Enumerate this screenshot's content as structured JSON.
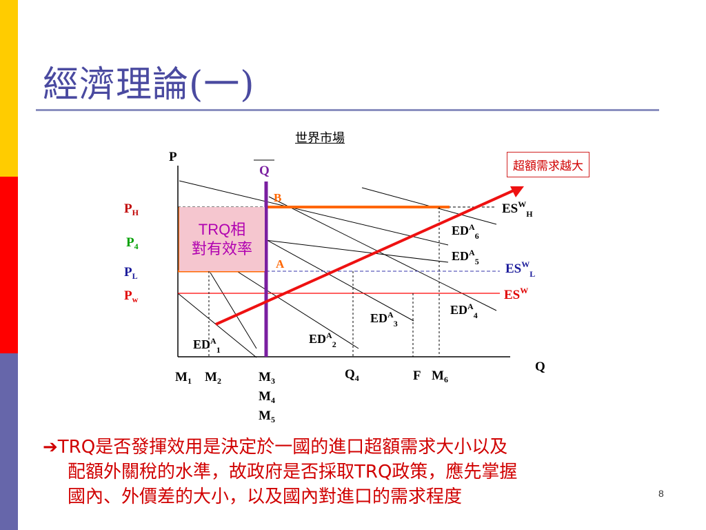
{
  "slide": {
    "title": "經濟理論(一)",
    "page_number": "8",
    "strip_colors": [
      "#ffcc00",
      "#ff0000",
      "#6666aa"
    ]
  },
  "chart": {
    "world_market_label": "世界市場",
    "callout": "超額需求越大",
    "trq_box": {
      "line1": "TRQ相",
      "line2": "對有效率"
    },
    "axis": {
      "p": "P",
      "q": "Q"
    },
    "price_labels": {
      "ph": {
        "main": "P",
        "sub": "H",
        "color": "#c00000"
      },
      "p4": {
        "main": "P",
        "sub": "4",
        "color": "#00a000"
      },
      "pl": {
        "main": "P",
        "sub": "L",
        "color": "#1a1a9a"
      },
      "pw": {
        "main": "P",
        "sub": "w",
        "color": "#e00000"
      }
    },
    "quota_label": "Q",
    "point_labels": {
      "b": "B",
      "a": "A"
    },
    "supply_labels": {
      "esw_h": {
        "main": "ES",
        "sup": "W",
        "sub": "H"
      },
      "esw_l": {
        "main": "ES",
        "sup": "W",
        "sub": "L"
      },
      "esw": {
        "main": "ES",
        "sup": "W"
      }
    },
    "demand_labels": [
      {
        "main": "ED",
        "sup": "A",
        "sub": "1"
      },
      {
        "main": "ED",
        "sup": "A",
        "sub": "2"
      },
      {
        "main": "ED",
        "sup": "A",
        "sub": "3"
      },
      {
        "main": "ED",
        "sup": "A",
        "sub": "4"
      },
      {
        "main": "ED",
        "sup": "A",
        "sub": "5"
      },
      {
        "main": "ED",
        "sup": "A",
        "sub": "6"
      }
    ],
    "quantity_labels": {
      "m1": {
        "main": "M",
        "sub": "1"
      },
      "m2": {
        "main": "M",
        "sub": "2"
      },
      "m3": {
        "main": "M",
        "sub": "3"
      },
      "m4": {
        "main": "M",
        "sub": "4"
      },
      "m5": {
        "main": "M",
        "sub": "5"
      },
      "q4": {
        "main": "Q",
        "sub": "4"
      },
      "f": {
        "main": "F"
      },
      "m6": {
        "main": "M",
        "sub": "6"
      }
    }
  },
  "bottom_text": {
    "arrow": "➔",
    "line1": "TRQ是否發揮效用是決定於一國的進口超額需求大小以及",
    "line2": "配額外關稅的水準，故政府是否採取TRQ政策，應先掌握",
    "line3": "國內、外價差的大小，以及國內對進口的需求程度"
  }
}
